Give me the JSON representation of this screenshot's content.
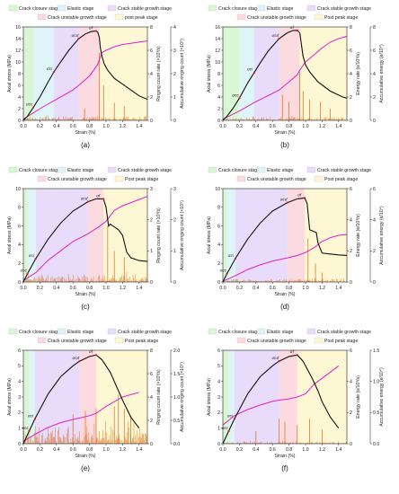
{
  "chart_data": [
    {
      "type": "line",
      "caption": "(a)",
      "legend": [
        "Crack closure stage",
        "Elastic stage",
        "Crack stable growth stage",
        "Crack unstable growth stage",
        "post peak stage"
      ],
      "stage_bounds": [
        0,
        0.12,
        0.37,
        0.67,
        0.92,
        1.5
      ],
      "xlabel": "Strain (%)",
      "ylabel_left": "Axial stress (MPa)",
      "ylabel_right1": "Ringing count rate (×10³/s)",
      "ylabel_right2": "Accumulative ringing count (×10⁵)",
      "xlim": [
        0,
        1.5
      ],
      "ylim_left": [
        0,
        16
      ],
      "ylim_right1": [
        0,
        8
      ],
      "ylim_right2": [
        0,
        4
      ],
      "xticks": [
        "0.0",
        "0.2",
        "0.4",
        "0.6",
        "0.8",
        "1.0",
        "1.2",
        "1.4"
      ],
      "yticks_left": [
        "0",
        "2",
        "4",
        "6",
        "8",
        "10",
        "12",
        "14",
        "16"
      ],
      "yticks_right1": [
        "0",
        "2",
        "4",
        "6",
        "8"
      ],
      "yticks_right2": [
        "0",
        "1",
        "2",
        "3",
        "4"
      ],
      "stress": {
        "x": [
          0,
          0.05,
          0.12,
          0.2,
          0.3,
          0.37,
          0.45,
          0.55,
          0.67,
          0.75,
          0.82,
          0.88,
          0.9,
          0.92,
          0.93,
          0.95,
          0.98,
          1.02,
          1.1,
          1.2,
          1.3,
          1.4,
          1.5
        ],
        "y": [
          0,
          0.7,
          2.2,
          4.0,
          6.6,
          8.3,
          10.0,
          12.0,
          14.0,
          14.8,
          15.2,
          15.3,
          15.1,
          14.2,
          12.5,
          11.0,
          9.6,
          8.6,
          7.2,
          6.2,
          5.2,
          4.2,
          3.6
        ]
      },
      "cumulative": {
        "x": [
          0,
          0.2,
          0.4,
          0.6,
          0.67,
          0.8,
          0.9,
          0.95,
          1.0,
          1.1,
          1.2,
          1.3,
          1.4,
          1.5
        ],
        "y": [
          0.05,
          0.5,
          0.9,
          1.3,
          1.5,
          1.9,
          2.4,
          2.9,
          3.0,
          3.15,
          3.25,
          3.3,
          3.35,
          3.4
        ]
      },
      "rate_noise": {
        "amp": 0.35,
        "seed": 3
      },
      "rate_spikes": [
        [
          0.74,
          1.0
        ],
        [
          0.92,
          5.8
        ],
        [
          0.97,
          3.0
        ],
        [
          1.1,
          1.5
        ],
        [
          1.22,
          1.2
        ]
      ],
      "annotations": [
        {
          "label": "σcc",
          "x": 0.12,
          "y": 2.2
        },
        {
          "label": "σci",
          "x": 0.37,
          "y": 8.3
        },
        {
          "label": "σcd",
          "x": 0.67,
          "y": 14.0
        },
        {
          "label": "σf",
          "x": 0.88,
          "y": 15.3
        }
      ]
    },
    {
      "type": "line",
      "caption": "(b)",
      "legend": [
        "Crack closure stage",
        "Elastic stage",
        "Crack stable growth stage",
        "Crack unstable growth stage",
        "Post peak stage"
      ],
      "stage_bounds": [
        0,
        0.2,
        0.38,
        0.68,
        0.93,
        1.5
      ],
      "xlabel": "Strain (%)",
      "ylabel_left": "Axial stress (MPa)",
      "ylabel_right1": "Energy rate (e/10³/s)",
      "ylabel_right2": "Accumulative energy (e/10⁴)",
      "xlim": [
        0,
        1.5
      ],
      "ylim_left": [
        0,
        16
      ],
      "ylim_right1": [
        0,
        8
      ],
      "ylim_right2": [
        0,
        8
      ],
      "xticks": [
        "0.0",
        "0.2",
        "0.4",
        "0.6",
        "0.8",
        "1.0",
        "1.2",
        "1.4"
      ],
      "yticks_left": [
        "0",
        "2",
        "4",
        "6",
        "8",
        "10",
        "12",
        "14",
        "16"
      ],
      "yticks_right1": [
        "0",
        "2",
        "4",
        "6",
        "8"
      ],
      "yticks_right2": [
        "0",
        "2",
        "4",
        "6",
        "8"
      ],
      "stress": {
        "x": [
          0,
          0.05,
          0.12,
          0.2,
          0.3,
          0.38,
          0.45,
          0.55,
          0.68,
          0.78,
          0.85,
          0.9,
          0.93,
          0.95,
          0.97,
          1.0,
          1.05,
          1.15,
          1.3,
          1.45,
          1.5
        ],
        "y": [
          0,
          0.7,
          2.0,
          3.8,
          6.4,
          8.2,
          9.8,
          11.9,
          14.0,
          15.0,
          15.4,
          15.4,
          15.0,
          13.0,
          11.0,
          9.5,
          8.3,
          6.6,
          5.0,
          4.0,
          3.8
        ]
      },
      "cumulative": {
        "x": [
          0,
          0.2,
          0.4,
          0.6,
          0.68,
          0.8,
          0.9,
          0.93,
          1.0,
          1.1,
          1.2,
          1.3,
          1.4,
          1.5
        ],
        "y": [
          0.1,
          0.8,
          1.6,
          2.3,
          2.6,
          3.3,
          3.9,
          4.3,
          5.0,
          5.6,
          6.2,
          6.7,
          7.0,
          7.2
        ]
      },
      "rate_noise": {
        "amp": 0.3,
        "seed": 7
      },
      "rate_spikes": [
        [
          0.72,
          2.2
        ],
        [
          0.8,
          1.6
        ],
        [
          0.93,
          4.2
        ],
        [
          0.97,
          2.5
        ],
        [
          1.05,
          1.8
        ],
        [
          1.18,
          1.6
        ],
        [
          1.3,
          1.0
        ]
      ],
      "annotations": [
        {
          "label": "σcc",
          "x": 0.2,
          "y": 3.8
        },
        {
          "label": "σci",
          "x": 0.38,
          "y": 8.2
        },
        {
          "label": "σcd",
          "x": 0.68,
          "y": 14.0
        },
        {
          "label": "σf",
          "x": 0.9,
          "y": 15.4
        }
      ]
    },
    {
      "type": "line",
      "caption": "(c)",
      "legend": [
        "Crack closure stage",
        "Elastic stage",
        "Crack stable growth stage",
        "Crack unstable growth stage",
        "Post peak stage"
      ],
      "stage_bounds": [
        0,
        0.05,
        0.15,
        0.78,
        0.97,
        1.5
      ],
      "xlabel": "Strain (%)",
      "ylabel_left": "Axial stress (MPa)",
      "ylabel_right1": "Ringing count rate (×10³/s)",
      "ylabel_right2": "Accumulative ringing count (×10⁵)",
      "xlim": [
        0,
        1.5
      ],
      "ylim_left": [
        0,
        10
      ],
      "ylim_right1": [
        0,
        3
      ],
      "ylim_right2": [
        0,
        3
      ],
      "xticks": [
        "0.0",
        "0.2",
        "0.4",
        "0.6",
        "0.8",
        "1.0",
        "1.2",
        "1.4"
      ],
      "yticks_left": [
        "0",
        "2",
        "4",
        "6",
        "8",
        "10"
      ],
      "yticks_right1": [
        "0",
        "1",
        "2",
        "3"
      ],
      "yticks_right2": [
        "0",
        "1",
        "2",
        "3"
      ],
      "stress": {
        "x": [
          0,
          0.05,
          0.15,
          0.3,
          0.45,
          0.6,
          0.78,
          0.88,
          0.97,
          1.0,
          1.03,
          1.05,
          1.1,
          1.15,
          1.2,
          1.25,
          1.3,
          1.4,
          1.5
        ],
        "y": [
          0,
          0.9,
          2.5,
          4.6,
          6.3,
          7.6,
          8.6,
          8.9,
          8.9,
          8.0,
          6.0,
          6.2,
          5.9,
          5.6,
          5.0,
          3.2,
          2.6,
          2.3,
          2.2
        ]
      },
      "cumulative": {
        "x": [
          0,
          0.15,
          0.3,
          0.45,
          0.6,
          0.78,
          0.9,
          1.0,
          1.1,
          1.2,
          1.3,
          1.4,
          1.5
        ],
        "y": [
          0.05,
          0.3,
          0.7,
          1.0,
          1.3,
          1.55,
          1.75,
          1.95,
          2.3,
          2.45,
          2.55,
          2.65,
          2.75
        ]
      },
      "rate_noise": {
        "amp": 0.25,
        "seed": 11
      },
      "rate_spikes": [
        [
          1.02,
          1.8
        ],
        [
          1.1,
          1.0
        ],
        [
          1.22,
          0.8
        ]
      ],
      "annotations": [
        {
          "label": "σcc",
          "x": 0.05,
          "y": 0.9
        },
        {
          "label": "σci",
          "x": 0.15,
          "y": 2.5
        },
        {
          "label": "σcd",
          "x": 0.78,
          "y": 8.6
        },
        {
          "label": "σf",
          "x": 0.97,
          "y": 8.9
        }
      ]
    },
    {
      "type": "line",
      "caption": "(d)",
      "legend": [
        "Crack closure stage",
        "Elastic stage",
        "Crack stable growth stage",
        "Crack unstable growth stage",
        "Post peak stage"
      ],
      "stage_bounds": [
        0,
        0.05,
        0.15,
        0.78,
        0.99,
        1.5
      ],
      "xlabel": "Strain (%)",
      "ylabel_left": "Axial stress (MPa)",
      "ylabel_right1": "Energy rate (e/10³/s)",
      "ylabel_right2": "Accumulative energy (e/10⁴)",
      "xlim": [
        0,
        1.5
      ],
      "ylim_left": [
        0,
        10
      ],
      "ylim_right1": [
        0,
        6
      ],
      "ylim_right2": [
        0,
        6
      ],
      "xticks": [
        "0.0",
        "0.2",
        "0.4",
        "0.6",
        "0.8",
        "1.0",
        "1.2",
        "1.4"
      ],
      "yticks_left": [
        "0",
        "2",
        "4",
        "6",
        "8",
        "10"
      ],
      "yticks_right1": [
        "0",
        "2",
        "4",
        "6"
      ],
      "yticks_right2": [
        "0",
        "2",
        "4",
        "6"
      ],
      "stress": {
        "x": [
          0,
          0.05,
          0.15,
          0.3,
          0.45,
          0.6,
          0.78,
          0.9,
          0.99,
          1.02,
          1.05,
          1.1,
          1.13,
          1.15,
          1.2,
          1.3,
          1.4,
          1.5
        ],
        "y": [
          0,
          0.9,
          2.5,
          4.6,
          6.3,
          7.6,
          8.5,
          8.9,
          9.0,
          8.4,
          5.6,
          5.4,
          5.3,
          4.2,
          3.1,
          3.0,
          2.9,
          2.85
        ]
      },
      "cumulative": {
        "x": [
          0,
          0.15,
          0.3,
          0.45,
          0.6,
          0.78,
          0.9,
          1.0,
          1.1,
          1.2,
          1.3,
          1.4,
          1.5
        ],
        "y": [
          0.05,
          0.4,
          0.8,
          1.1,
          1.35,
          1.55,
          1.7,
          1.9,
          2.2,
          2.6,
          2.85,
          3.0,
          3.05
        ]
      },
      "rate_noise": {
        "amp": 0.2,
        "seed": 5
      },
      "rate_spikes": [
        [
          1.03,
          2.8
        ],
        [
          1.12,
          1.2
        ],
        [
          1.2,
          0.6
        ]
      ],
      "annotations": [
        {
          "label": "σcc",
          "x": 0.05,
          "y": 0.9
        },
        {
          "label": "σci",
          "x": 0.15,
          "y": 2.5
        },
        {
          "label": "σcd",
          "x": 0.78,
          "y": 8.5
        },
        {
          "label": "σf",
          "x": 0.99,
          "y": 9.0
        }
      ]
    },
    {
      "type": "line",
      "caption": "(e)",
      "legend": [
        "Crack closure stage",
        "Elastic stage",
        "Crack stable growth stage",
        "Crack unstable growth stage",
        "Post peak stage"
      ],
      "stage_bounds": [
        0,
        0.07,
        0.14,
        0.68,
        0.88,
        1.5
      ],
      "xlabel": "Strain (%)",
      "ylabel_left": "Axial stress (MPa)",
      "ylabel_right1": "Ringing count rate (×10³/s)",
      "ylabel_right2": "Accumulative ringing count (×10⁵)",
      "xlim": [
        0,
        1.5
      ],
      "ylim_left": [
        0,
        6
      ],
      "ylim_right1": [
        0,
        8
      ],
      "ylim_right2": [
        0,
        2.0
      ],
      "xticks": [
        "0.0",
        "0.2",
        "0.4",
        "0.6",
        "0.8",
        "1.0",
        "1.2",
        "1.4"
      ],
      "yticks_left": [
        "0",
        "1",
        "2",
        "3",
        "4",
        "5",
        "6"
      ],
      "yticks_right1": [
        "0",
        "2",
        "4",
        "6",
        "8"
      ],
      "yticks_right2": [
        "0.0",
        "0.5",
        "1.0",
        "1.5",
        "2.0"
      ],
      "stress": {
        "x": [
          0,
          0.07,
          0.14,
          0.3,
          0.45,
          0.6,
          0.68,
          0.8,
          0.88,
          0.95,
          1.0,
          1.05,
          1.1,
          1.2,
          1.3,
          1.4
        ],
        "y": [
          0,
          0.8,
          1.6,
          3.2,
          4.3,
          5.0,
          5.3,
          5.6,
          5.7,
          5.4,
          5.0,
          4.6,
          4.0,
          2.8,
          1.7,
          1.0
        ]
      },
      "cumulative": {
        "x": [
          0,
          0.14,
          0.3,
          0.45,
          0.6,
          0.68,
          0.8,
          0.88,
          1.0,
          1.1,
          1.2,
          1.3,
          1.4
        ],
        "y": [
          0.05,
          0.2,
          0.35,
          0.45,
          0.52,
          0.55,
          0.6,
          0.65,
          0.8,
          0.9,
          1.0,
          1.05,
          1.1
        ]
      },
      "rate_noise": {
        "amp": 1.6,
        "seed": 13
      },
      "rate_spikes": [
        [
          0.6,
          2.5
        ],
        [
          0.75,
          2.8
        ],
        [
          0.88,
          3.0
        ],
        [
          1.1,
          3.2
        ],
        [
          1.15,
          4.2
        ],
        [
          1.22,
          3.0
        ],
        [
          1.3,
          2.4
        ]
      ],
      "annotations": [
        {
          "label": "σcc",
          "x": 0.07,
          "y": 0.8
        },
        {
          "label": "σci",
          "x": 0.14,
          "y": 1.6
        },
        {
          "label": "σcd",
          "x": 0.68,
          "y": 5.3
        },
        {
          "label": "σf",
          "x": 0.88,
          "y": 5.7
        }
      ]
    },
    {
      "type": "line",
      "caption": "(f)",
      "legend": [
        "Crack closure stage",
        "Elastic stage",
        "Crack stable growth stage",
        "Crack unstable growth stage",
        "Post peak stage"
      ],
      "stage_bounds": [
        0,
        0.07,
        0.14,
        0.68,
        0.9,
        1.5
      ],
      "xlabel": "Strain (%)",
      "ylabel_left": "Axial stress (MPa)",
      "ylabel_right1": "Energy rate (e/10³/s)",
      "ylabel_right2": "Accumulative energy (e/10⁴)",
      "xlim": [
        0,
        1.5
      ],
      "ylim_left": [
        0,
        6
      ],
      "ylim_right1": [
        0,
        6
      ],
      "ylim_right2": [
        0,
        1.5
      ],
      "xticks": [
        "0.0",
        "0.2",
        "0.4",
        "0.6",
        "0.8",
        "1.0",
        "1.2",
        "1.4"
      ],
      "yticks_left": [
        "0",
        "1",
        "2",
        "3",
        "4",
        "5",
        "6"
      ],
      "yticks_right1": [
        "0",
        "2",
        "4",
        "6"
      ],
      "yticks_right2": [
        "0.0",
        "0.5",
        "1.0",
        "1.5"
      ],
      "stress": {
        "x": [
          0,
          0.07,
          0.14,
          0.3,
          0.45,
          0.6,
          0.68,
          0.8,
          0.9,
          0.97,
          1.02,
          1.08,
          1.15,
          1.2,
          1.3,
          1.4
        ],
        "y": [
          0,
          0.8,
          1.6,
          3.2,
          4.3,
          5.0,
          5.3,
          5.6,
          5.7,
          5.3,
          4.8,
          4.2,
          3.4,
          2.7,
          1.7,
          1.0
        ]
      },
      "cumulative": {
        "x": [
          0,
          0.14,
          0.3,
          0.45,
          0.6,
          0.68,
          0.8,
          0.9,
          1.0,
          1.1,
          1.2,
          1.3,
          1.4
        ],
        "y": [
          0.3,
          0.45,
          0.55,
          0.62,
          0.68,
          0.7,
          0.72,
          0.75,
          0.8,
          0.95,
          1.05,
          1.15,
          1.25
        ]
      },
      "rate_noise": {
        "amp": 0.15,
        "seed": 17
      },
      "rate_spikes": [
        [
          0.4,
          0.8
        ],
        [
          0.68,
          1.6
        ],
        [
          0.75,
          1.4
        ],
        [
          0.9,
          1.2
        ],
        [
          1.05,
          1.6
        ],
        [
          1.2,
          0.9
        ]
      ],
      "annotations": [
        {
          "label": "σcc",
          "x": 0.07,
          "y": 0.8
        },
        {
          "label": "σci",
          "x": 0.14,
          "y": 1.6
        },
        {
          "label": "σcd",
          "x": 0.68,
          "y": 5.3
        },
        {
          "label": "σf",
          "x": 0.9,
          "y": 5.7
        }
      ]
    }
  ],
  "colors": {
    "stages": [
      "#d9f7d5",
      "#dff4f8",
      "#e8dcfa",
      "#fbdbdf",
      "#fdf7d4"
    ],
    "stress": "#111111",
    "cumulative": "#e020c8",
    "rate": "#d96a1a",
    "annotation_point": "#d81818"
  }
}
